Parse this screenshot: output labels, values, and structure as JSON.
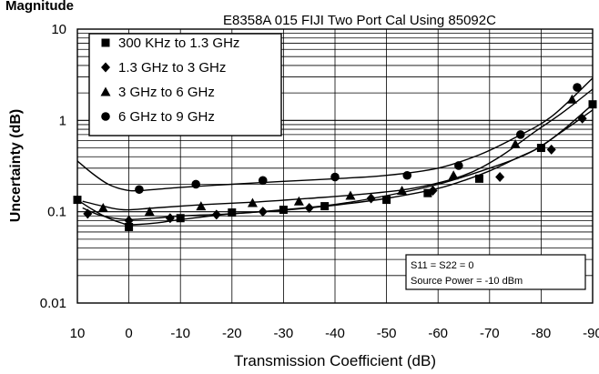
{
  "header_label": "Magnitude",
  "chart_data": {
    "type": "line",
    "title": "E8358A 015 FIJI Two Port Cal Using 85092C",
    "xlabel": "Transmission Coefficient (dB)",
    "ylabel": "Uncertainty (dB)",
    "xlim": [
      10,
      -90
    ],
    "ylim": [
      0.01,
      10
    ],
    "yscale": "log",
    "grid": true,
    "x_ticks": [
      "10",
      "0",
      "-10",
      "-20",
      "-30",
      "-40",
      "-50",
      "-60",
      "-70",
      "-80",
      "-90"
    ],
    "y_ticks": [
      "10",
      "1",
      "0.1",
      "0.01"
    ],
    "legend_position": "top-left",
    "annotation": {
      "line1": "S11 = S22 = 0",
      "line2": "Source Power = -10 dBm"
    },
    "series": [
      {
        "name": "300 KHz to 1.3 GHz",
        "marker": "square",
        "curve": [
          [
            10,
            0.135
          ],
          [
            7,
            0.105
          ],
          [
            4,
            0.085
          ],
          [
            1,
            0.074
          ],
          [
            0,
            0.072
          ],
          [
            -5,
            0.075
          ],
          [
            -10,
            0.082
          ],
          [
            -20,
            0.095
          ],
          [
            -30,
            0.104
          ],
          [
            -40,
            0.118
          ],
          [
            -50,
            0.14
          ],
          [
            -60,
            0.18
          ],
          [
            -66,
            0.23
          ],
          [
            -70,
            0.28
          ],
          [
            -75,
            0.38
          ],
          [
            -80,
            0.52
          ],
          [
            -85,
            0.85
          ],
          [
            -90,
            1.5
          ]
        ],
        "points": [
          [
            10,
            0.135
          ],
          [
            0,
            0.068
          ],
          [
            -10,
            0.085
          ],
          [
            -20,
            0.098
          ],
          [
            -30,
            0.105
          ],
          [
            -38,
            0.115
          ],
          [
            -50,
            0.135
          ],
          [
            -58,
            0.16
          ],
          [
            -68,
            0.23
          ],
          [
            -80,
            0.5
          ],
          [
            -90,
            1.5
          ]
        ]
      },
      {
        "name": "1.3 GHz to 3 GHz",
        "marker": "diamond",
        "curve": [
          [
            9,
            0.11
          ],
          [
            6,
            0.093
          ],
          [
            3,
            0.085
          ],
          [
            0,
            0.082
          ],
          [
            -5,
            0.085
          ],
          [
            -10,
            0.09
          ],
          [
            -20,
            0.095
          ],
          [
            -30,
            0.105
          ],
          [
            -40,
            0.12
          ],
          [
            -50,
            0.15
          ],
          [
            -60,
            0.2
          ],
          [
            -70,
            0.3
          ],
          [
            -78,
            0.45
          ],
          [
            -84,
            0.75
          ],
          [
            -90,
            1.3
          ]
        ],
        "points": [
          [
            8,
            0.095
          ],
          [
            0,
            0.08
          ],
          [
            -8,
            0.085
          ],
          [
            -17,
            0.093
          ],
          [
            -26,
            0.1
          ],
          [
            -35,
            0.11
          ],
          [
            -47,
            0.14
          ],
          [
            -59,
            0.17
          ],
          [
            -72,
            0.24
          ],
          [
            -82,
            0.48
          ],
          [
            -88,
            1.05
          ]
        ]
      },
      {
        "name": "3 GHz to 6 GHz",
        "marker": "triangle",
        "curve": [
          [
            9,
            0.13
          ],
          [
            5,
            0.115
          ],
          [
            1,
            0.105
          ],
          [
            -5,
            0.11
          ],
          [
            -15,
            0.12
          ],
          [
            -25,
            0.128
          ],
          [
            -35,
            0.14
          ],
          [
            -45,
            0.155
          ],
          [
            -55,
            0.18
          ],
          [
            -65,
            0.25
          ],
          [
            -72,
            0.4
          ],
          [
            -78,
            0.7
          ],
          [
            -84,
            1.2
          ],
          [
            -90,
            2.2
          ]
        ],
        "points": [
          [
            5,
            0.11
          ],
          [
            -4,
            0.1
          ],
          [
            -14,
            0.115
          ],
          [
            -24,
            0.125
          ],
          [
            -33,
            0.13
          ],
          [
            -43,
            0.15
          ],
          [
            -53,
            0.17
          ],
          [
            -63,
            0.25
          ],
          [
            -75,
            0.55
          ],
          [
            -86,
            1.7
          ]
        ]
      },
      {
        "name": "6 GHz to 9 GHz",
        "marker": "circle",
        "curve": [
          [
            10,
            0.36
          ],
          [
            7,
            0.26
          ],
          [
            4,
            0.2
          ],
          [
            1,
            0.175
          ],
          [
            -2,
            0.17
          ],
          [
            -10,
            0.185
          ],
          [
            -20,
            0.2
          ],
          [
            -30,
            0.215
          ],
          [
            -40,
            0.23
          ],
          [
            -50,
            0.25
          ],
          [
            -60,
            0.3
          ],
          [
            -68,
            0.42
          ],
          [
            -75,
            0.65
          ],
          [
            -82,
            1.1
          ],
          [
            -90,
            2.9
          ]
        ],
        "points": [
          [
            -2,
            0.175
          ],
          [
            -13,
            0.2
          ],
          [
            -26,
            0.22
          ],
          [
            -40,
            0.24
          ],
          [
            -54,
            0.25
          ],
          [
            -64,
            0.32
          ],
          [
            -76,
            0.7
          ],
          [
            -87,
            2.3
          ]
        ]
      }
    ]
  }
}
